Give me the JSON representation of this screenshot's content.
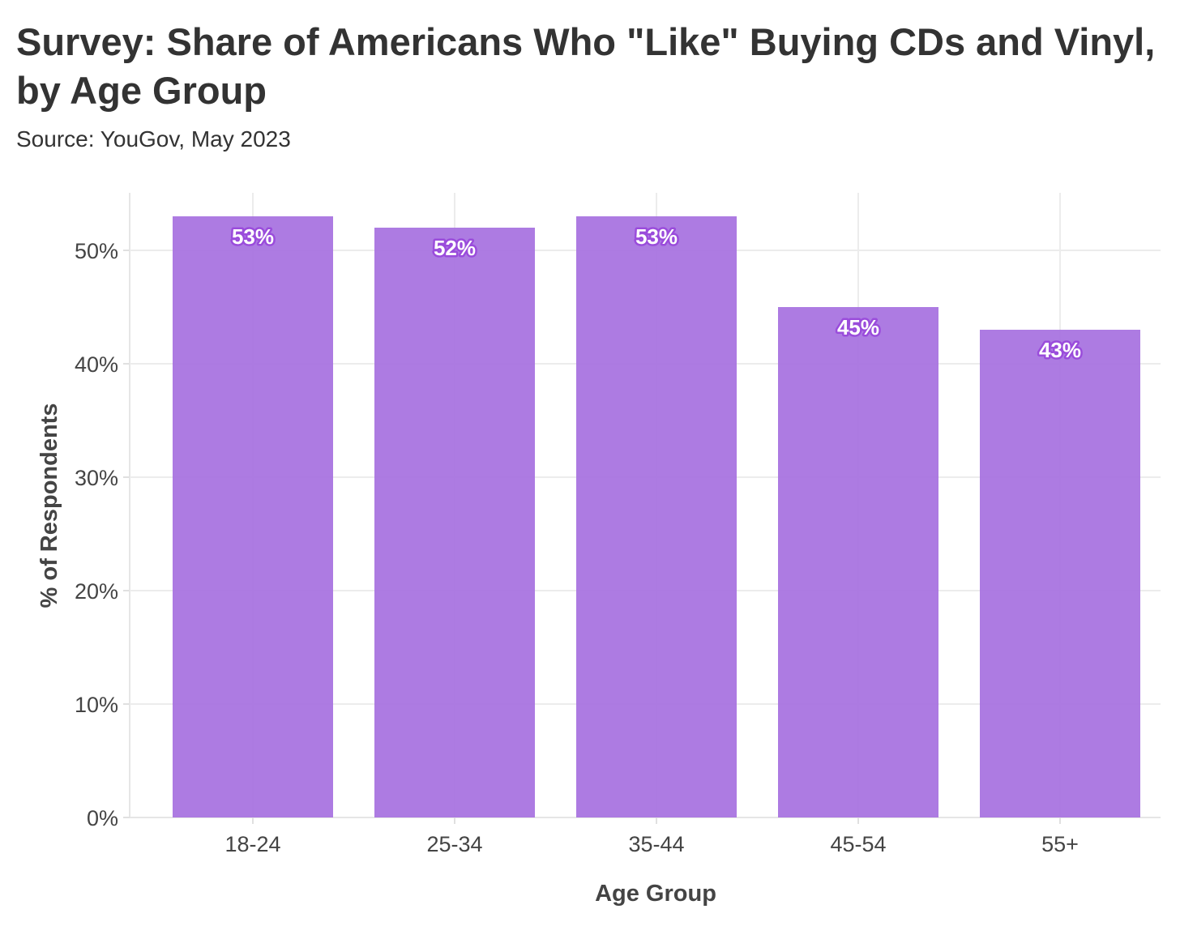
{
  "chart_data": {
    "type": "bar",
    "title": "Survey: Share of Americans Who \"Like\" Buying CDs and Vinyl, by Age Group",
    "subtitle": "Source: YouGov, May 2023",
    "xlabel": "Age Group",
    "ylabel": "% of Respondents",
    "categories": [
      "18-24",
      "25-34",
      "35-44",
      "45-54",
      "55+"
    ],
    "values": [
      53,
      52,
      53,
      45,
      43
    ],
    "data_labels": [
      "53%",
      "52%",
      "53%",
      "45%",
      "43%"
    ],
    "ylim": [
      0,
      55
    ],
    "yticks": [
      0,
      10,
      20,
      30,
      40,
      50
    ],
    "ytick_labels": [
      "0%",
      "10%",
      "20%",
      "30%",
      "40%",
      "50%"
    ],
    "grid": true,
    "bar_color": "#a974e0",
    "label_outline_color": "#9a4cdb"
  }
}
